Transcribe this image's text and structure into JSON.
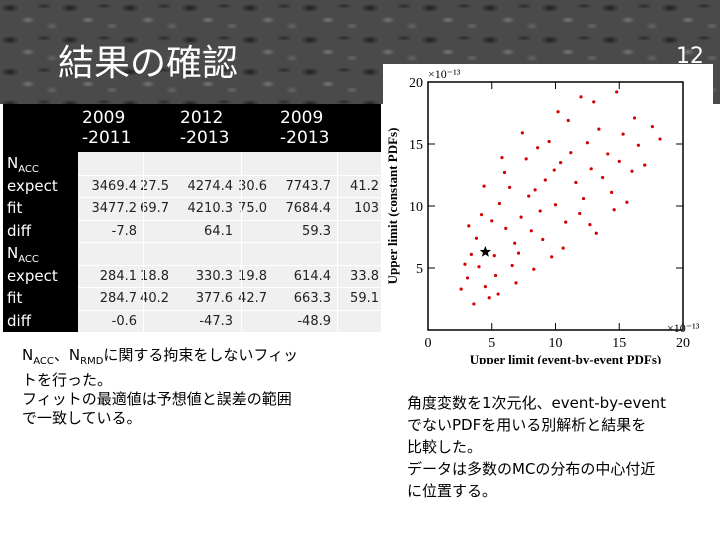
{
  "slide": {
    "title": "結果の確認",
    "page_number": "12"
  },
  "table": {
    "columns": [
      "2009\n-2011",
      "2012\n-2013",
      "2009\n-2013"
    ],
    "rows": [
      {
        "label": "N",
        "label_sub": "ACC",
        "cells": [
          "",
          "",
          "",
          "",
          "",
          ""
        ]
      },
      {
        "label": "expect",
        "label_sub": "",
        "cells": [
          "3469.4",
          "27.5",
          "4274.4",
          "30.6",
          "7743.7",
          "41.2"
        ]
      },
      {
        "label": "fit",
        "label_sub": "",
        "cells": [
          "3477.2",
          "69.7",
          "4210.3",
          "75.0",
          "7684.4",
          "103"
        ]
      },
      {
        "label": "diff",
        "label_sub": "",
        "cells": [
          "-7.8",
          "",
          "64.1",
          "",
          "59.3",
          ""
        ]
      },
      {
        "label": "N",
        "label_sub": "ACC",
        "cells": [
          "",
          "",
          "",
          "",
          "",
          ""
        ]
      },
      {
        "label": "expect",
        "label_sub": "",
        "cells": [
          "284.1",
          "18.8",
          "330.3",
          "19.8",
          "614.4",
          "33.8"
        ]
      },
      {
        "label": "fit",
        "label_sub": "",
        "cells": [
          "284.7",
          "40.2",
          "377.6",
          "42.7",
          "663.3",
          "59.1"
        ]
      },
      {
        "label": "diff",
        "label_sub": "",
        "cells": [
          "-0.6",
          "",
          "-47.3",
          "",
          "-48.9",
          ""
        ]
      }
    ]
  },
  "left_text": {
    "n1": "N",
    "n1_sub": "ACC",
    "sep": "、",
    "n2": "N",
    "n2_sub": "RMD",
    "line1_rest": "に関する拘束をしないフィッ",
    "line2": "トを行った。",
    "line3": "フィットの最適値は予想値と誤差の範囲",
    "line4": "で一致している。"
  },
  "right_text": {
    "line1": "角度変数を1次元化、event-by-event",
    "line2": "でないPDFを用いる別解析と結果を",
    "line3": "比較した。",
    "line4": "データは多数のMCの分布の中心付近",
    "line5": "に位置する。"
  },
  "chart_data": {
    "type": "scatter",
    "xlabel": "Upper limit (event-by-event PDFs)",
    "ylabel": "Upper limit (constant PDFs)",
    "x_multiplier": "×10⁻¹³",
    "y_multiplier": "×10⁻¹³",
    "xlim": [
      0,
      20
    ],
    "ylim": [
      0,
      20
    ],
    "xticks": [
      0,
      5,
      10,
      15,
      20
    ],
    "yticks": [
      5,
      10,
      15,
      20
    ],
    "point_color": "#d40000",
    "marker_color": "#000000",
    "data_point": {
      "x": 4.5,
      "y": 6.3
    },
    "mc_points": [
      [
        3.1,
        4.2
      ],
      [
        4.0,
        5.1
      ],
      [
        5.2,
        6.0
      ],
      [
        3.8,
        7.4
      ],
      [
        6.1,
        8.2
      ],
      [
        4.5,
        3.5
      ],
      [
        7.3,
        9.1
      ],
      [
        5.6,
        10.2
      ],
      [
        8.4,
        11.3
      ],
      [
        6.8,
        7.0
      ],
      [
        9.2,
        12.1
      ],
      [
        10.4,
        13.5
      ],
      [
        7.9,
        10.8
      ],
      [
        11.2,
        14.3
      ],
      [
        12.5,
        15.1
      ],
      [
        8.8,
        9.6
      ],
      [
        13.4,
        16.2
      ],
      [
        9.9,
        12.9
      ],
      [
        5.0,
        8.8
      ],
      [
        6.4,
        11.5
      ],
      [
        4.2,
        9.3
      ],
      [
        3.4,
        6.1
      ],
      [
        2.6,
        3.3
      ],
      [
        7.1,
        6.2
      ],
      [
        8.1,
        8.0
      ],
      [
        10.0,
        10.1
      ],
      [
        11.6,
        11.9
      ],
      [
        12.8,
        13.0
      ],
      [
        14.1,
        14.2
      ],
      [
        15.3,
        15.8
      ],
      [
        16.2,
        17.1
      ],
      [
        13.0,
        18.4
      ],
      [
        14.8,
        19.2
      ],
      [
        11.0,
        16.9
      ],
      [
        9.5,
        15.2
      ],
      [
        7.7,
        13.8
      ],
      [
        6.0,
        12.7
      ],
      [
        5.3,
        4.4
      ],
      [
        4.8,
        2.6
      ],
      [
        3.6,
        2.1
      ],
      [
        2.9,
        5.3
      ],
      [
        6.6,
        5.2
      ],
      [
        9.0,
        7.3
      ],
      [
        10.8,
        8.7
      ],
      [
        12.2,
        10.6
      ],
      [
        13.7,
        12.3
      ],
      [
        15.0,
        13.6
      ],
      [
        16.5,
        14.9
      ],
      [
        17.6,
        16.4
      ],
      [
        8.6,
        14.7
      ],
      [
        10.2,
        17.6
      ],
      [
        12.0,
        18.8
      ],
      [
        7.4,
        15.9
      ],
      [
        5.8,
        13.9
      ],
      [
        4.4,
        11.6
      ],
      [
        3.2,
        8.4
      ],
      [
        11.9,
        9.4
      ],
      [
        14.4,
        11.1
      ],
      [
        16.0,
        12.8
      ],
      [
        9.7,
        5.9
      ],
      [
        8.3,
        4.9
      ],
      [
        6.9,
        3.8
      ],
      [
        5.5,
        2.9
      ],
      [
        13.2,
        7.8
      ],
      [
        15.6,
        10.3
      ],
      [
        17.0,
        13.3
      ],
      [
        18.2,
        15.4
      ],
      [
        10.6,
        6.6
      ],
      [
        12.7,
        8.5
      ],
      [
        14.6,
        9.7
      ]
    ]
  }
}
